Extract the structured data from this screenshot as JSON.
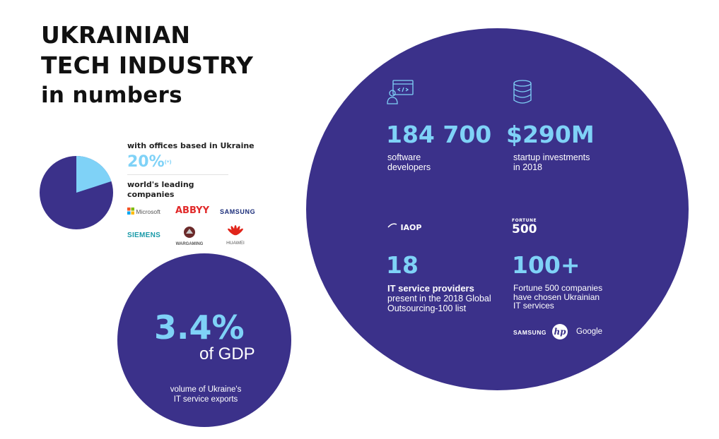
{
  "title": {
    "line1": "UKRAINIAN",
    "line2": "TECH INDUSTRY",
    "line3": "in numbers"
  },
  "pie": {
    "value_percent": 20,
    "heading1": "with offices based in Ukraine",
    "value_label": "20%",
    "footnote": "(*)",
    "heading2_line1": "world's leading",
    "heading2_line2": "companies",
    "colors": {
      "base": "#3b318a",
      "highlight": "#7fd2f7"
    },
    "companies": [
      {
        "name": "Microsoft",
        "icon": "microsoft-logo"
      },
      {
        "name": "ABBYY",
        "icon": "abbyy-logo"
      },
      {
        "name": "SAMSUNG",
        "icon": "samsung-logo"
      },
      {
        "name": "SIEMENS",
        "icon": "siemens-logo"
      },
      {
        "name": "WARGAMING",
        "icon": "wargaming-logo"
      },
      {
        "name": "HUAWEI",
        "icon": "huawei-logo"
      }
    ]
  },
  "gdp": {
    "value": "3.4%",
    "unit": "of GDP",
    "desc_line1": "volume of Ukraine's",
    "desc_line2": "IT service exports"
  },
  "stats": {
    "developers": {
      "icon": "developer-icon",
      "value": "184 700",
      "line1": "software",
      "line2": "developers"
    },
    "investments": {
      "icon": "database-icon",
      "value": "$290M",
      "line1": "startup investments",
      "line2": "in 2018"
    },
    "providers": {
      "icon": "iaop-logo",
      "logo_text": "IAOP",
      "value": "18",
      "bold_line": "IT service providers",
      "line1": "present in the 2018 Global",
      "line2": "Outsourcing-100 list"
    },
    "fortune": {
      "icon": "fortune-500-logo",
      "logo_top": "FORTUNE",
      "logo_bottom": "500",
      "value": "100+",
      "line1": "Fortune 500 companies",
      "line2": "have chosen Ukrainian",
      "line3": "IT services"
    }
  },
  "partner_logos": [
    {
      "name": "SAMSUNG",
      "icon": "samsung-logo"
    },
    {
      "name": "hp",
      "icon": "hp-logo"
    },
    {
      "name": "Google",
      "icon": "google-logo"
    }
  ],
  "colors": {
    "circle": "#3b318a",
    "accent": "#7fd2f7",
    "text_dark": "#111111"
  }
}
